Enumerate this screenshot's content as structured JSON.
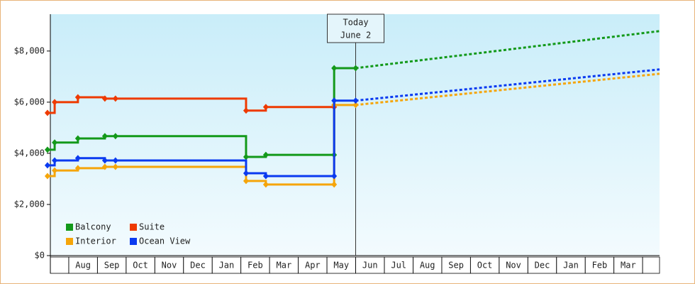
{
  "chart_data": {
    "type": "step-line",
    "categories": [
      null,
      "Aug",
      "Sep",
      "Oct",
      "Nov",
      "Dec",
      "Jan",
      "Feb",
      "Mar",
      "Apr",
      "May",
      "Jun",
      "Jul",
      "Aug",
      "Sep",
      "Oct",
      "Nov",
      "Dec",
      "Jan",
      "Feb",
      "Mar",
      null
    ],
    "xlim": [
      0.36,
      21.59
    ],
    "ylim": [
      0,
      9440
    ],
    "yticks": [
      {
        "value": 0,
        "label": "$0"
      },
      {
        "value": 2000,
        "label": "$2,000"
      },
      {
        "value": 4000,
        "label": "$4,000"
      },
      {
        "value": 6000,
        "label": "$6,000"
      },
      {
        "value": 8000,
        "label": "$8,000"
      }
    ],
    "annotation": {
      "x": 11,
      "text": [
        "Today",
        "June 2"
      ]
    },
    "legend": "lower left",
    "series": [
      {
        "name": "Balcony",
        "color": "#13991a",
        "x": [
          0.26,
          0.51,
          1.32,
          2.26,
          2.63,
          7.18,
          7.87,
          10.25,
          10.25,
          11.0
        ],
        "values": [
          4140,
          4420,
          4580,
          4670,
          4670,
          3860,
          3940,
          3940,
          7330,
          7330
        ],
        "forecast": {
          "x": [
            11.0,
            21.59
          ],
          "values": [
            7330,
            8780
          ]
        }
      },
      {
        "name": "Suite",
        "color": "#ee3a00",
        "x": [
          0.26,
          0.51,
          1.32,
          2.26,
          2.63,
          7.18,
          7.87,
          10.25
        ],
        "values": [
          5580,
          6000,
          6190,
          6140,
          6140,
          5670,
          5810,
          5810
        ]
      },
      {
        "name": "Interior",
        "color": "#f5a50a",
        "x": [
          0.26,
          0.51,
          1.32,
          2.26,
          2.63,
          7.18,
          7.87,
          10.25,
          10.25,
          11.0
        ],
        "values": [
          3110,
          3330,
          3420,
          3470,
          3470,
          2920,
          2780,
          2780,
          5890,
          5890
        ],
        "forecast": {
          "x": [
            11.0,
            21.59
          ],
          "values": [
            5890,
            7110
          ]
        }
      },
      {
        "name": "Ocean View",
        "color": "#0a3af0",
        "x": [
          0.26,
          0.51,
          1.32,
          2.26,
          2.63,
          7.18,
          7.87,
          10.25,
          10.25,
          11.0
        ],
        "values": [
          3530,
          3720,
          3810,
          3720,
          3720,
          3220,
          3110,
          3110,
          6060,
          6060
        ],
        "forecast": {
          "x": [
            11.0,
            21.59
          ],
          "values": [
            6060,
            7280
          ]
        }
      }
    ]
  }
}
